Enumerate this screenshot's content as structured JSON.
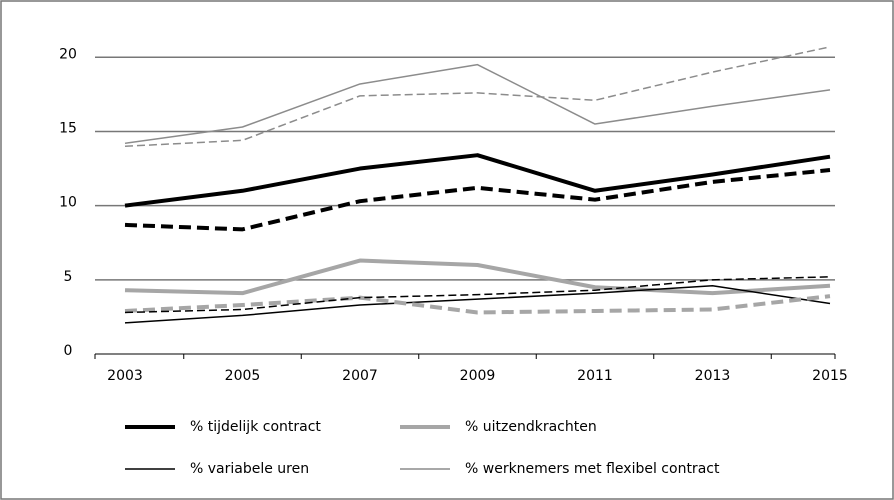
{
  "chart_data": {
    "type": "line",
    "categories": [
      "2003",
      "2005",
      "2007",
      "2009",
      "2011",
      "2013",
      "2015"
    ],
    "ylim": [
      0,
      21.5
    ],
    "yticks": [
      0,
      5,
      10,
      15,
      20
    ],
    "grid": true,
    "series": [
      {
        "name": "% tijdelijk contract",
        "color": "#000000",
        "width": 4,
        "dash": false,
        "values": [
          10.0,
          11.0,
          12.5,
          13.4,
          11.0,
          12.1,
          13.3
        ]
      },
      {
        "name": "% uitzendkrachten",
        "color": "#a6a6a6",
        "width": 4,
        "dash": false,
        "values": [
          4.3,
          4.1,
          6.3,
          6.0,
          4.5,
          4.1,
          4.6
        ]
      },
      {
        "name": "% variabele uren",
        "color": "#000000",
        "width": 1.5,
        "dash": false,
        "values": [
          2.1,
          2.6,
          3.3,
          3.7,
          4.1,
          4.6,
          3.4
        ]
      },
      {
        "name": "% werknemers met flexibel contract",
        "color": "#8c8c8c",
        "width": 1.5,
        "dash": false,
        "values": [
          14.2,
          15.3,
          18.2,
          19.5,
          15.5,
          16.7,
          17.8
        ]
      },
      {
        "color": "#000000",
        "width": 4,
        "dash": true,
        "values": [
          8.7,
          8.4,
          10.3,
          11.2,
          10.4,
          11.6,
          12.4
        ]
      },
      {
        "color": "#a6a6a6",
        "width": 4,
        "dash": true,
        "values": [
          2.9,
          3.3,
          3.8,
          2.8,
          2.9,
          3.0,
          3.9
        ]
      },
      {
        "color": "#000000",
        "width": 1.5,
        "dash": true,
        "values": [
          2.8,
          3.0,
          3.8,
          4.0,
          4.3,
          5.0,
          5.2
        ]
      },
      {
        "color": "#8c8c8c",
        "width": 1.5,
        "dash": true,
        "values": [
          14.0,
          14.4,
          17.4,
          17.6,
          17.1,
          19.0,
          20.7
        ]
      }
    ]
  }
}
